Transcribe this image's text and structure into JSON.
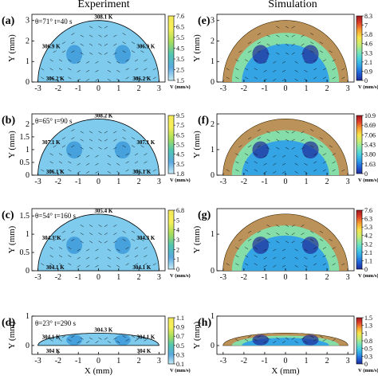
{
  "column_titles": {
    "left": "Experiment",
    "right": "Simulation"
  },
  "colors": {
    "jet": [
      "#1f2c9a",
      "#1f5fd6",
      "#2fa0e8",
      "#48d0de",
      "#7fe6b0",
      "#c8ec70",
      "#f6e34a",
      "#f5a030",
      "#e0402a",
      "#a0161e"
    ],
    "ice": [
      "#e4f3fb",
      "#bfe3f1",
      "#8ecde8",
      "#66bde4",
      "#3fa6dc",
      "#2c8ad0"
    ]
  },
  "chart_data": [
    {
      "panel": "(a)",
      "type": "heatmap",
      "source": "Experiment",
      "condition": "θ=71° t=40 s",
      "xlabel": "",
      "ylabel": "Y (mm)",
      "xlim": [
        -3.3,
        3.3
      ],
      "ylim": [
        0,
        3.3
      ],
      "xticks": [
        "-3",
        "-2",
        "-1",
        "0",
        "1",
        "2",
        "3"
      ],
      "yticks": [
        "0",
        "1",
        "2",
        "3"
      ],
      "colorbar": {
        "ticks": [
          "7.6",
          "6.5",
          "5.5",
          "4.5",
          "3.5",
          "2.5",
          "1.5"
        ],
        "unit": "V (mm/s)"
      },
      "temperature_labels": [
        "308.1 K",
        "306.9 K",
        "306.9 K",
        "306.2 K",
        "306.2 K"
      ]
    },
    {
      "panel": "(b)",
      "type": "heatmap",
      "source": "Experiment",
      "condition": "θ=65° t=90 s",
      "xlabel": "",
      "ylabel": "Y (mm)",
      "xlim": [
        -3.3,
        3.3
      ],
      "ylim": [
        0,
        2.4
      ],
      "xticks": [
        "-3",
        "-2",
        "-1",
        "0",
        "1",
        "2",
        "3"
      ],
      "yticks": [
        "0",
        "0.5",
        "1",
        "1.5",
        "2"
      ],
      "colorbar": {
        "ticks": [
          "9.5",
          "7.5",
          "6.5",
          "5.5",
          "4.5",
          "3.5",
          "1.8"
        ],
        "unit": "V (mm/s)"
      },
      "temperature_labels": [
        "308.2 K",
        "307.1 K",
        "307.1 K",
        "306.1 K",
        "306.1 K"
      ]
    },
    {
      "panel": "(c)",
      "type": "heatmap",
      "source": "Experiment",
      "condition": "θ=54° t=160 s",
      "xlabel": "",
      "ylabel": "Y (mm)",
      "xlim": [
        -3.3,
        3.3
      ],
      "ylim": [
        0,
        1.7
      ],
      "xticks": [
        "-3",
        "-2",
        "-1",
        "0",
        "1",
        "2",
        "3"
      ],
      "yticks": [
        "0",
        "0.5",
        "1",
        "1.5"
      ],
      "colorbar": {
        "ticks": [
          "6.8",
          "5",
          "4",
          "3",
          "2",
          "1",
          "0"
        ],
        "unit": "V (mm/s)"
      },
      "temperature_labels": [
        "305.4 K",
        "304.3°K",
        "304.3 K",
        "304.1 K",
        "304.1 K"
      ]
    },
    {
      "panel": "(d)",
      "type": "heatmap",
      "source": "Experiment",
      "condition": "θ=23° t=290 s",
      "xlabel": "X (mm)",
      "ylabel": "Y (mm)",
      "xlim": [
        -3.3,
        3.3
      ],
      "ylim": [
        -0.3,
        1.0
      ],
      "xticks": [
        "-3",
        "-2",
        "-1",
        "0",
        "1",
        "2",
        "3"
      ],
      "yticks": [
        "0",
        "1"
      ],
      "colorbar": {
        "ticks": [
          "1.1",
          "0.9",
          "0.7",
          "0.5",
          "0.3",
          "0.1"
        ],
        "unit": "V (mm/s)"
      },
      "temperature_labels": [
        "304.3 K",
        "304.1 K",
        "304.1 K",
        "304 K",
        "304 K"
      ]
    },
    {
      "panel": "(e)",
      "type": "heatmap",
      "source": "Simulation",
      "xlabel": "",
      "ylabel": "Y (mm)",
      "xlim": [
        -3.3,
        3.3
      ],
      "ylim": [
        0,
        3.3
      ],
      "xticks": [
        "-3",
        "-2",
        "-1",
        "0",
        "1",
        "2",
        "3"
      ],
      "yticks": [
        "0",
        "1",
        "2",
        "3"
      ],
      "colorbar": {
        "ticks": [
          "8.3",
          "7",
          "5.8",
          "4.6",
          "3.3",
          "2.1",
          "0.9",
          "0"
        ],
        "unit": "V (mm/s)"
      }
    },
    {
      "panel": "(f)",
      "type": "heatmap",
      "source": "Simulation",
      "xlabel": "",
      "ylabel": "Y (mm)",
      "xlim": [
        -3.3,
        3.3
      ],
      "ylim": [
        0,
        2.4
      ],
      "xticks": [
        "-3",
        "-2",
        "-1",
        "0",
        "1",
        "2",
        "3"
      ],
      "yticks": [
        "0",
        "1",
        "2"
      ],
      "colorbar": {
        "ticks": [
          "10.9",
          "8.69",
          "7.06",
          "5.43",
          "3.80",
          "1.63",
          "0"
        ],
        "unit": "V (mm/s)"
      }
    },
    {
      "panel": "(g)",
      "type": "heatmap",
      "source": "Simulation",
      "xlabel": "",
      "ylabel": "Y (mm)",
      "xlim": [
        -3.3,
        3.3
      ],
      "ylim": [
        0,
        1.7
      ],
      "xticks": [
        "-3",
        "-2",
        "-1",
        "0",
        "1",
        "2",
        "3"
      ],
      "yticks": [
        "0",
        "1"
      ],
      "colorbar": {
        "ticks": [
          "7.6",
          "6.3",
          "5.3",
          "4.2",
          "3.2",
          "2.1",
          "1.1",
          "0"
        ],
        "unit": "V (mm/s)"
      }
    },
    {
      "panel": "(h)",
      "type": "heatmap",
      "source": "Simulation",
      "xlabel": "X (mm)",
      "ylabel": "Y (mm)",
      "xlim": [
        -3.3,
        3.3
      ],
      "ylim": [
        -0.3,
        1.0
      ],
      "xticks": [
        "-3",
        "-2",
        "-1",
        "0",
        "1",
        "2",
        "3"
      ],
      "yticks": [
        "0",
        "1"
      ],
      "colorbar": {
        "ticks": [
          "1.5",
          "1.3",
          "1",
          "0.8",
          "0.5",
          "0.3",
          "0"
        ],
        "unit": "V (mm/s)"
      }
    }
  ]
}
